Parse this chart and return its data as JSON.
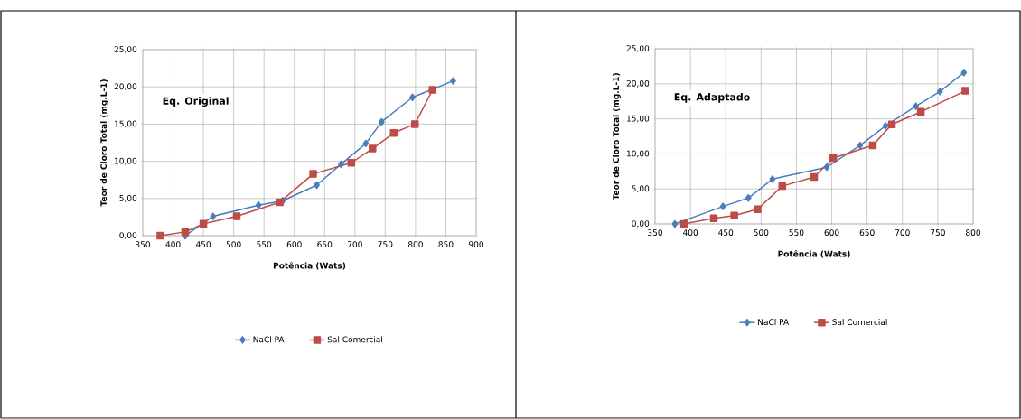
{
  "chart_data": [
    {
      "type": "line",
      "xlabel": "Potência (Wats)",
      "ylabel": "Teor de Cloro Total (mg.L-1)",
      "annotations": [
        "Eq. Original"
      ],
      "grid": true,
      "legend": "bottom",
      "xlim": [
        350,
        900
      ],
      "xticks": [
        350,
        400,
        450,
        500,
        550,
        600,
        650,
        700,
        750,
        800,
        850,
        900
      ],
      "ylim": [
        0,
        25
      ],
      "yticks": [
        {
          "value": 0,
          "label": "0,00"
        },
        {
          "value": 5,
          "label": "5,00"
        },
        {
          "value": 10,
          "label": "10,00"
        },
        {
          "value": 15,
          "label": "15,00"
        },
        {
          "value": 20,
          "label": "20,00"
        },
        {
          "value": 25,
          "label": "25,00"
        }
      ],
      "series": [
        {
          "name": "NaCl PA",
          "color": "#4a7ebb",
          "marker": "diamond",
          "x": [
            420,
            466,
            541,
            581,
            637,
            677,
            718,
            744,
            795,
            862
          ],
          "values": [
            0,
            2.6,
            4.1,
            4.7,
            6.8,
            9.6,
            12.4,
            15.3,
            18.6,
            20.8
          ]
        },
        {
          "name": "Sal Comercial",
          "color": "#be4b48",
          "marker": "square",
          "x": [
            379,
            420,
            450,
            505,
            576,
            631,
            694,
            729,
            764,
            799,
            828
          ],
          "values": [
            0,
            0.5,
            1.6,
            2.6,
            4.5,
            8.3,
            9.8,
            11.7,
            13.8,
            15.0,
            19.6
          ]
        }
      ]
    },
    {
      "type": "line",
      "xlabel": "Potência (Wats)",
      "ylabel": "Teor de Cloro Total (mg.L-1)",
      "annotations": [
        "Eq. Adaptado"
      ],
      "grid": true,
      "legend": "bottom",
      "xlim": [
        350,
        800
      ],
      "xticks": [
        350,
        400,
        450,
        500,
        550,
        600,
        650,
        700,
        750,
        800
      ],
      "ylim": [
        0,
        25
      ],
      "yticks": [
        {
          "value": 0,
          "label": "0,00"
        },
        {
          "value": 5,
          "label": "5,00"
        },
        {
          "value": 10,
          "label": "10,00"
        },
        {
          "value": 15,
          "label": "15,00"
        },
        {
          "value": 20,
          "label": "20,00"
        },
        {
          "value": 25,
          "label": "25,00"
        }
      ],
      "series": [
        {
          "name": "NaCl PA",
          "color": "#4a7ebb",
          "marker": "diamond",
          "x": [
            378,
            446,
            482,
            516,
            593,
            640,
            676,
            719,
            753,
            787
          ],
          "values": [
            0,
            2.5,
            3.7,
            6.4,
            8.1,
            11.2,
            14.0,
            16.8,
            18.9,
            21.6
          ]
        },
        {
          "name": "Sal Comercial",
          "color": "#be4b48",
          "marker": "square",
          "x": [
            391,
            433,
            462,
            495,
            530,
            575,
            602,
            658,
            685,
            726,
            789
          ],
          "values": [
            0,
            0.8,
            1.2,
            2.1,
            5.4,
            6.7,
            9.4,
            11.2,
            14.2,
            16.0,
            19.0
          ]
        }
      ]
    }
  ]
}
